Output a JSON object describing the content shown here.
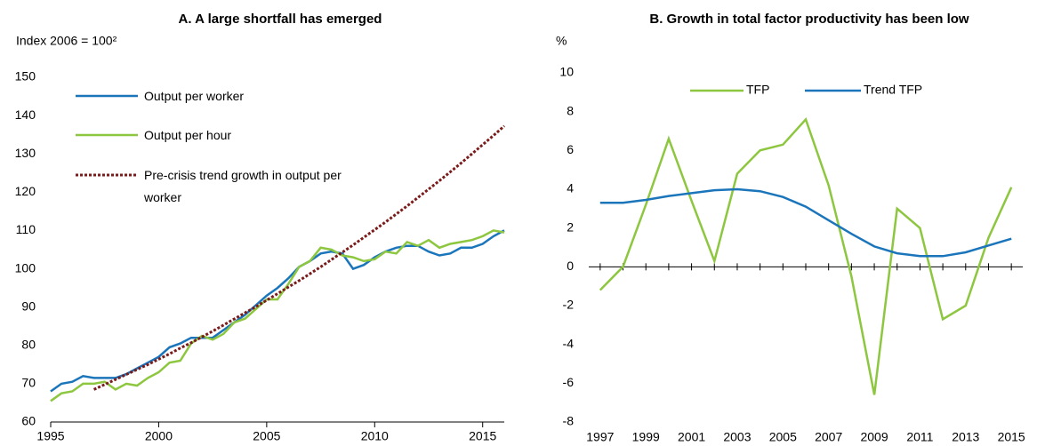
{
  "chart_data": [
    {
      "type": "line",
      "title": "A. A large shortfall has emerged",
      "y_label": "Index 2006 = 100²",
      "x": [
        1995,
        1995.5,
        1996,
        1996.5,
        1997,
        1997.5,
        1998,
        1998.5,
        1999,
        1999.5,
        2000,
        2000.5,
        2001,
        2001.5,
        2002,
        2002.5,
        2003,
        2003.5,
        2004,
        2004.5,
        2005,
        2005.5,
        2006,
        2006.5,
        2007,
        2007.5,
        2008,
        2008.5,
        2009,
        2009.5,
        2010,
        2010.5,
        2011,
        2011.5,
        2012,
        2012.5,
        2013,
        2013.5,
        2014,
        2014.5,
        2015,
        2015.5,
        2016
      ],
      "xlim": [
        1995,
        2016
      ],
      "xticks": [
        1995,
        2000,
        2005,
        2010,
        2015
      ],
      "ylim": [
        60,
        150
      ],
      "yticks": [
        60,
        70,
        80,
        90,
        100,
        110,
        120,
        130,
        140,
        150
      ],
      "series": [
        {
          "name": "Output per worker",
          "color": "#1b75bb",
          "style": "solid",
          "values": [
            68,
            70,
            70.5,
            72,
            71.5,
            71.5,
            71.5,
            72.5,
            74,
            75.5,
            77,
            79.5,
            80.5,
            82,
            82,
            82,
            84,
            86,
            88,
            90.5,
            93,
            95,
            97.5,
            100.5,
            102,
            104,
            104.5,
            104,
            100,
            101,
            103,
            104.5,
            105.5,
            106,
            106,
            104.5,
            103.5,
            104,
            105.5,
            105.5,
            106.5,
            108.5,
            110
          ]
        },
        {
          "name": "Output per hour",
          "color": "#8dc63f",
          "style": "solid",
          "values": [
            65.5,
            67.5,
            68,
            70,
            70,
            70.5,
            68.5,
            70,
            69.5,
            71.5,
            73,
            75.5,
            76,
            80.5,
            82.5,
            81.5,
            83,
            86,
            87,
            89.5,
            92,
            92,
            96,
            100.5,
            102,
            105.5,
            105,
            103.5,
            103,
            102,
            102.5,
            104.5,
            104,
            107,
            106,
            107.5,
            105.5,
            106.5,
            107,
            107.5,
            108.5,
            110,
            109.5
          ]
        },
        {
          "name": "Pre-crisis trend growth in output per worker",
          "color": "#7b1c1c",
          "style": "dotted",
          "values": [
            null,
            null,
            null,
            null,
            68.5,
            69.8,
            71.1,
            72.4,
            73.7,
            75,
            76.4,
            77.8,
            79.3,
            80.7,
            82.2,
            83.7,
            85.3,
            86.9,
            88.5,
            90.1,
            91.8,
            93.5,
            95.2,
            96.9,
            98.7,
            100.5,
            102.4,
            104.3,
            106.2,
            108.2,
            110.2,
            112.2,
            114.3,
            116.4,
            118.6,
            120.8,
            123,
            125.3,
            127.6,
            130,
            132.4,
            134.8,
            137.3
          ]
        }
      ]
    },
    {
      "type": "line",
      "title": "B. Growth in total factor productivity has been low",
      "y_label": "%",
      "categories": [
        "1997",
        null,
        "1999",
        null,
        "2001",
        null,
        "2003",
        null,
        "2005",
        null,
        "2007",
        null,
        "2009",
        null,
        "2011",
        null,
        "2013",
        null,
        "2015"
      ],
      "ylim": [
        -8,
        10
      ],
      "yticks": [
        -8,
        -6,
        -4,
        -2,
        0,
        2,
        4,
        6,
        8,
        10
      ],
      "series": [
        {
          "name": "TFP",
          "color": "#8dc63f",
          "style": "solid",
          "values": [
            -1.2,
            0,
            3.2,
            6.6,
            3.4,
            0.3,
            4.8,
            6.0,
            6.3,
            7.6,
            4.2,
            -0.5,
            -6.6,
            3.0,
            2.0,
            -2.7,
            -2.0,
            1.5,
            4.1
          ]
        },
        {
          "name": "Trend TFP",
          "color": "#1b75bb",
          "style": "solid",
          "values": [
            3.3,
            3.3,
            3.45,
            3.65,
            3.8,
            3.95,
            4.0,
            3.9,
            3.6,
            3.1,
            2.4,
            1.7,
            1.05,
            0.7,
            0.55,
            0.55,
            0.75,
            1.1,
            1.45
          ]
        }
      ]
    }
  ]
}
